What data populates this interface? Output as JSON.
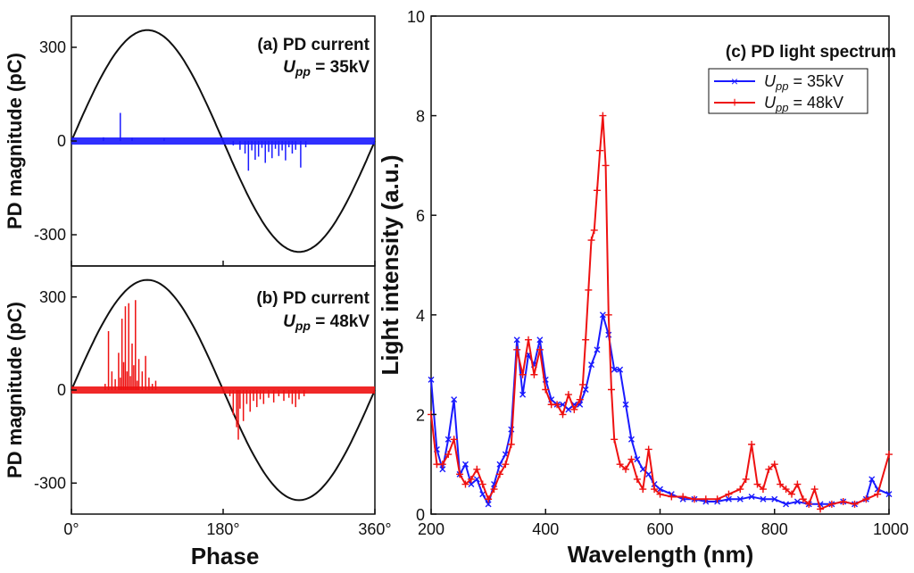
{
  "chart_data": [
    {
      "type": "scatter",
      "panel": "a",
      "title": "(a) PD current",
      "subtitle_var": "U",
      "subtitle_sub": "pp",
      "subtitle_value": " = 35kV",
      "xlabel": "Phase",
      "ylabel": "PD magnitude (pC)",
      "xlim": [
        0,
        360
      ],
      "ylim": [
        -400,
        400
      ],
      "yticks": [
        -300,
        0,
        300
      ],
      "ytick_labels": [
        "-300",
        "0",
        "300"
      ],
      "reference_sine_amplitude": 355,
      "pulse_color": "#1a1aff",
      "pulses": [
        {
          "phase": 58,
          "q": 90
        },
        {
          "phase": 38,
          "q": 12
        },
        {
          "phase": 72,
          "q": 10
        },
        {
          "phase": 110,
          "q": 8
        },
        {
          "phase": 192,
          "q": -14
        },
        {
          "phase": 200,
          "q": -28
        },
        {
          "phase": 206,
          "q": -40
        },
        {
          "phase": 210,
          "q": -95
        },
        {
          "phase": 214,
          "q": -30
        },
        {
          "phase": 218,
          "q": -60
        },
        {
          "phase": 222,
          "q": -50
        },
        {
          "phase": 226,
          "q": -22
        },
        {
          "phase": 230,
          "q": -70
        },
        {
          "phase": 234,
          "q": -35
        },
        {
          "phase": 238,
          "q": -55
        },
        {
          "phase": 242,
          "q": -25
        },
        {
          "phase": 246,
          "q": -48
        },
        {
          "phase": 250,
          "q": -30
        },
        {
          "phase": 254,
          "q": -62
        },
        {
          "phase": 258,
          "q": -20
        },
        {
          "phase": 262,
          "q": -40
        },
        {
          "phase": 266,
          "q": -28
        },
        {
          "phase": 272,
          "q": -85
        },
        {
          "phase": 278,
          "q": -20
        }
      ]
    },
    {
      "type": "scatter",
      "panel": "b",
      "title": "(b) PD current",
      "subtitle_var": "U",
      "subtitle_sub": "pp",
      "subtitle_value": " = 48kV",
      "xlabel": "Phase",
      "ylabel": "PD magnitude (pC)",
      "xlim": [
        0,
        360
      ],
      "xticks": [
        0,
        180,
        360
      ],
      "xtick_labels": [
        "0°",
        "180°",
        "360°"
      ],
      "ylim": [
        -400,
        400
      ],
      "yticks": [
        -300,
        0,
        300
      ],
      "ytick_labels": [
        "-300",
        "0",
        "300"
      ],
      "reference_sine_amplitude": 355,
      "pulse_color": "#ee1111",
      "pulses": [
        {
          "phase": 40,
          "q": 20
        },
        {
          "phase": 44,
          "q": 190
        },
        {
          "phase": 48,
          "q": 60
        },
        {
          "phase": 52,
          "q": 35
        },
        {
          "phase": 56,
          "q": 120
        },
        {
          "phase": 58,
          "q": 40
        },
        {
          "phase": 60,
          "q": 230
        },
        {
          "phase": 62,
          "q": 90
        },
        {
          "phase": 64,
          "q": 270
        },
        {
          "phase": 66,
          "q": 60
        },
        {
          "phase": 68,
          "q": 280
        },
        {
          "phase": 70,
          "q": 45
        },
        {
          "phase": 72,
          "q": 150
        },
        {
          "phase": 74,
          "q": 80
        },
        {
          "phase": 76,
          "q": 290
        },
        {
          "phase": 78,
          "q": 30
        },
        {
          "phase": 80,
          "q": 100
        },
        {
          "phase": 84,
          "q": 60
        },
        {
          "phase": 88,
          "q": 110
        },
        {
          "phase": 92,
          "q": 40
        },
        {
          "phase": 96,
          "q": 20
        },
        {
          "phase": 100,
          "q": 30
        },
        {
          "phase": 188,
          "q": -20
        },
        {
          "phase": 192,
          "q": -80
        },
        {
          "phase": 196,
          "q": -120
        },
        {
          "phase": 198,
          "q": -160
        },
        {
          "phase": 200,
          "q": -60
        },
        {
          "phase": 204,
          "q": -100
        },
        {
          "phase": 208,
          "q": -45
        },
        {
          "phase": 212,
          "q": -70
        },
        {
          "phase": 216,
          "q": -35
        },
        {
          "phase": 220,
          "q": -55
        },
        {
          "phase": 224,
          "q": -30
        },
        {
          "phase": 228,
          "q": -45
        },
        {
          "phase": 234,
          "q": -25
        },
        {
          "phase": 240,
          "q": -40
        },
        {
          "phase": 246,
          "q": -20
        },
        {
          "phase": 252,
          "q": -35
        },
        {
          "phase": 258,
          "q": -25
        },
        {
          "phase": 262,
          "q": -45
        },
        {
          "phase": 266,
          "q": -55
        },
        {
          "phase": 270,
          "q": -30
        },
        {
          "phase": 276,
          "q": -20
        }
      ]
    },
    {
      "type": "line",
      "panel": "c",
      "title": "(c) PD light spectrum",
      "xlabel": "Wavelength (nm)",
      "ylabel": "Light intensity (a.u.)",
      "xlim": [
        200,
        1000
      ],
      "xticks": [
        200,
        400,
        600,
        800,
        1000
      ],
      "xtick_labels": [
        "200",
        "400",
        "600",
        "800",
        "1000"
      ],
      "ylim": [
        0,
        10
      ],
      "yticks": [
        0,
        2,
        4,
        6,
        8,
        10
      ],
      "ytick_labels": [
        "0",
        "2",
        "4",
        "6",
        "8",
        "10"
      ],
      "series": [
        {
          "name_var": "U",
          "name_sub": "pp",
          "name_value": " = 35kV",
          "color": "#1a1aff",
          "marker": "x",
          "x": [
            200,
            210,
            220,
            230,
            240,
            250,
            260,
            270,
            280,
            290,
            300,
            310,
            320,
            330,
            340,
            350,
            360,
            370,
            380,
            390,
            400,
            410,
            420,
            430,
            440,
            450,
            460,
            470,
            480,
            490,
            500,
            510,
            520,
            530,
            540,
            550,
            560,
            570,
            580,
            590,
            600,
            620,
            640,
            660,
            680,
            700,
            720,
            740,
            760,
            780,
            800,
            820,
            840,
            860,
            880,
            900,
            920,
            940,
            960,
            970,
            980,
            1000
          ],
          "y": [
            2.7,
            1.3,
            0.9,
            1.5,
            2.3,
            0.8,
            1.0,
            0.6,
            0.7,
            0.4,
            0.2,
            0.6,
            1.0,
            1.2,
            1.7,
            3.5,
            2.4,
            3.2,
            3.0,
            3.5,
            2.7,
            2.3,
            2.2,
            2.2,
            2.1,
            2.2,
            2.2,
            2.5,
            3.0,
            3.3,
            4.0,
            3.6,
            2.9,
            2.9,
            2.2,
            1.5,
            1.1,
            0.9,
            0.8,
            0.6,
            0.5,
            0.4,
            0.3,
            0.3,
            0.25,
            0.25,
            0.3,
            0.3,
            0.35,
            0.3,
            0.3,
            0.2,
            0.25,
            0.2,
            0.2,
            0.2,
            0.25,
            0.2,
            0.3,
            0.7,
            0.5,
            0.4
          ]
        },
        {
          "name_var": "U",
          "name_sub": "pp",
          "name_value": " = 48kV",
          "color": "#ee1111",
          "marker": "+",
          "x": [
            200,
            210,
            220,
            230,
            240,
            250,
            260,
            270,
            280,
            290,
            300,
            310,
            320,
            330,
            340,
            350,
            360,
            370,
            380,
            390,
            400,
            410,
            420,
            430,
            440,
            450,
            460,
            465,
            470,
            475,
            480,
            485,
            490,
            495,
            500,
            505,
            510,
            515,
            520,
            530,
            540,
            550,
            560,
            570,
            580,
            590,
            600,
            620,
            640,
            660,
            680,
            700,
            720,
            740,
            750,
            760,
            770,
            780,
            790,
            800,
            810,
            820,
            830,
            840,
            850,
            860,
            870,
            880,
            900,
            920,
            940,
            960,
            980,
            1000
          ],
          "y": [
            2.0,
            1.0,
            1.0,
            1.2,
            1.5,
            0.8,
            0.6,
            0.7,
            0.9,
            0.6,
            0.3,
            0.5,
            0.8,
            1.0,
            1.4,
            3.3,
            2.8,
            3.5,
            2.8,
            3.3,
            2.5,
            2.2,
            2.2,
            2.0,
            2.4,
            2.1,
            2.3,
            2.6,
            3.5,
            4.5,
            5.5,
            5.7,
            6.5,
            7.3,
            8.0,
            7.0,
            4.0,
            2.5,
            1.5,
            1.0,
            0.9,
            1.1,
            0.7,
            0.5,
            1.3,
            0.5,
            0.4,
            0.35,
            0.35,
            0.3,
            0.3,
            0.3,
            0.4,
            0.5,
            0.7,
            1.4,
            0.6,
            0.5,
            0.9,
            1.0,
            0.6,
            0.5,
            0.4,
            0.6,
            0.3,
            0.2,
            0.5,
            0.1,
            0.2,
            0.25,
            0.2,
            0.3,
            0.4,
            1.2
          ]
        }
      ]
    }
  ],
  "shared_phase_label": "Phase"
}
